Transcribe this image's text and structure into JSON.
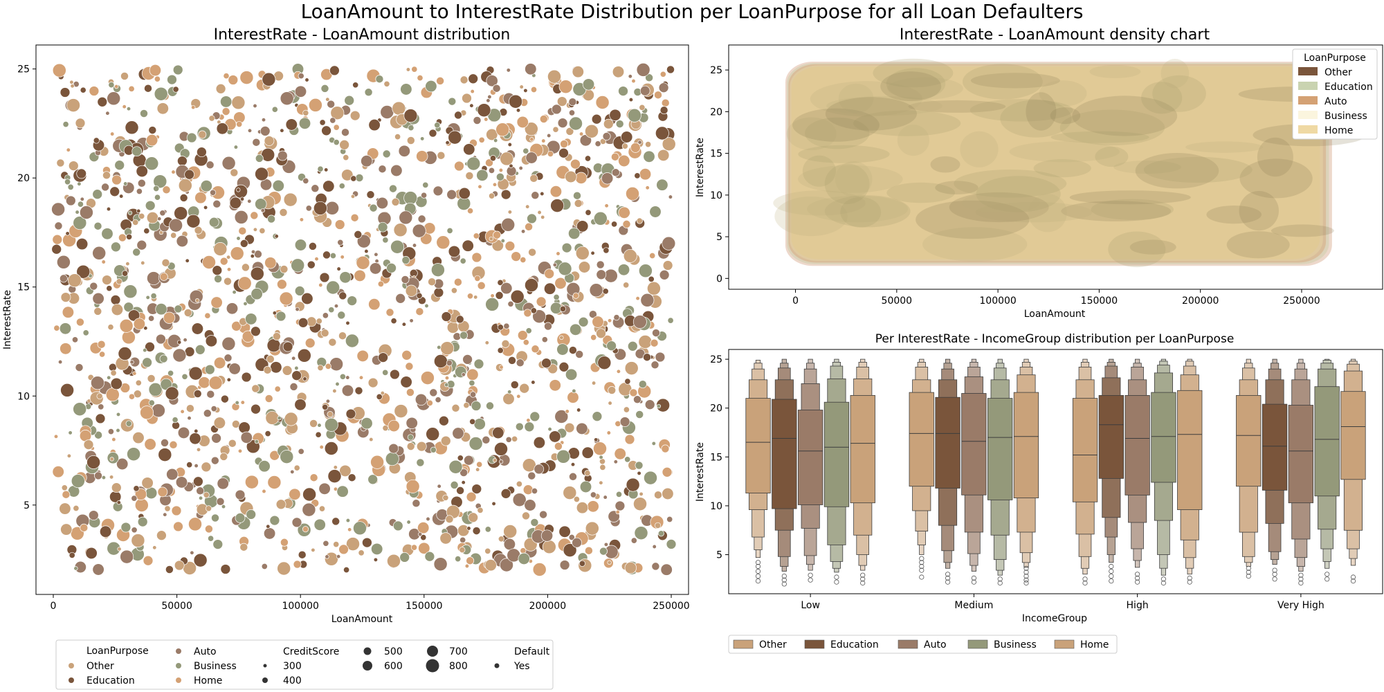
{
  "figure": {
    "suptitle": "LoanAmount to InterestRate Distribution per LoanPurpose for all Loan Defaulters"
  },
  "chart_data": [
    {
      "type": "scatter",
      "title": "InterestRate - LoanAmount distribution",
      "xlabel": "LoanAmount",
      "ylabel": "InterestRate",
      "xlim": [
        -7000,
        257000
      ],
      "ylim": [
        0.9,
        26.1
      ],
      "xticks": [
        0,
        50000,
        100000,
        150000,
        200000,
        250000
      ],
      "xtick_labels": [
        "0",
        "50000",
        "100000",
        "150000",
        "200000",
        "250000"
      ],
      "yticks": [
        5,
        10,
        15,
        20,
        25
      ],
      "ytick_labels": [
        "5",
        "10",
        "15",
        "20",
        "25"
      ],
      "x_range": [
        1000,
        250000
      ],
      "y_range": [
        2,
        25
      ],
      "approx_point_count": 1800,
      "note_points": "individual points are too dense to read; distribution is roughly uniform over the ranges",
      "categories": [
        "Other",
        "Education",
        "Auto",
        "Business",
        "Home"
      ],
      "colors": {
        "Other": "#c9a27a",
        "Education": "#7a553b",
        "Auto": "#9a7b68",
        "Business": "#94997a",
        "Home": "#d4a174"
      },
      "size_variable": "CreditScore",
      "size_levels": [
        300,
        400,
        500,
        600,
        700,
        800
      ],
      "style_variable": "Default",
      "style_levels": [
        "Yes"
      ],
      "legend": {
        "placement": "bottom",
        "hue_title": "LoanPurpose",
        "hue_items": [
          "Other",
          "Education",
          "Auto",
          "Business",
          "Home"
        ],
        "size_title": "CreditScore",
        "size_items": [
          "300",
          "400",
          "500",
          "600",
          "700",
          "800"
        ],
        "style_title": "Default",
        "style_items": [
          "Yes"
        ]
      }
    },
    {
      "type": "area",
      "subtype": "kde-density",
      "title": "InterestRate - LoanAmount density chart",
      "xlabel": "LoanAmount",
      "ylabel": "InterestRate",
      "xlim": [
        -33000,
        290000
      ],
      "ylim": [
        -1.3,
        28
      ],
      "xticks": [
        0,
        50000,
        100000,
        150000,
        200000,
        250000
      ],
      "xtick_labels": [
        "0",
        "50000",
        "100000",
        "150000",
        "200000",
        "250000"
      ],
      "yticks": [
        0,
        5,
        10,
        15,
        20,
        25
      ],
      "ytick_labels": [
        "0",
        "5",
        "10",
        "15",
        "20",
        "25"
      ],
      "density_extent": {
        "x": [
          -5000,
          265000
        ],
        "y": [
          1.5,
          26
        ]
      },
      "series": [
        {
          "name": "Other",
          "color": "#7a553b"
        },
        {
          "name": "Education",
          "color": "#c9d3b0"
        },
        {
          "name": "Auto",
          "color": "#d4a174"
        },
        {
          "name": "Business",
          "color": "#fbf5de"
        },
        {
          "name": "Home",
          "color": "#efd9a4"
        }
      ],
      "legend": {
        "title": "LoanPurpose",
        "placement": "top-right",
        "items": [
          "Other",
          "Education",
          "Auto",
          "Business",
          "Home"
        ]
      }
    },
    {
      "type": "boxen",
      "title": "Per InterestRate - IncomeGroup distribution per LoanPurpose",
      "xlabel": "IncomeGroup",
      "ylabel": "InterestRate",
      "ylim": [
        1.0,
        26.0
      ],
      "yticks": [
        5,
        10,
        15,
        20,
        25
      ],
      "ytick_labels": [
        "5",
        "10",
        "15",
        "20",
        "25"
      ],
      "categories": [
        "Low",
        "Medium",
        "High",
        "Very High"
      ],
      "hue_order": [
        "Other",
        "Education",
        "Auto",
        "Business",
        "Home"
      ],
      "colors": {
        "Other": "#c9a27a",
        "Education": "#7a553b",
        "Auto": "#9a7b68",
        "Business": "#94997a",
        "Home": "#c9a27a"
      },
      "series": [
        {
          "name": "Other",
          "median": [
            16.5,
            17.4,
            15.2,
            17.2
          ]
        },
        {
          "name": "Education",
          "median": [
            16.9,
            17.4,
            18.3,
            16.1
          ]
        },
        {
          "name": "Auto",
          "median": [
            15.6,
            16.6,
            16.9,
            15.6
          ]
        },
        {
          "name": "Business",
          "median": [
            16.0,
            17.0,
            17.1,
            16.8
          ]
        },
        {
          "name": "Home",
          "median": [
            16.4,
            17.1,
            17.3,
            18.1
          ]
        }
      ],
      "boxes": {
        "Low": {
          "Other": {
            "median": 16.5,
            "q": [
              11.3,
              21.0
            ],
            "l2": [
              9.6,
              22.9
            ],
            "l3": [
              6.8,
              24.0
            ],
            "l4": [
              5.5,
              24.6
            ],
            "l5": [
              4.7,
              24.9
            ],
            "outliers": [
              4.2,
              3.8,
              3.3,
              2.8,
              2.3
            ]
          },
          "Education": {
            "median": 16.9,
            "q": [
              9.7,
              20.9
            ],
            "l2": [
              7.5,
              22.9
            ],
            "l3": [
              4.8,
              24.1
            ],
            "l4": [
              3.8,
              24.6
            ],
            "l5": [
              3.3,
              25.0
            ],
            "outliers": [
              2.8,
              2.4,
              2.0
            ]
          },
          "Auto": {
            "median": 15.6,
            "q": [
              10.1,
              19.8
            ],
            "l2": [
              7.7,
              22.5
            ],
            "l3": [
              4.9,
              24.0
            ],
            "l4": [
              4.0,
              24.6
            ],
            "l5": [
              3.4,
              25.0
            ],
            "outliers": [
              2.9,
              2.4
            ]
          },
          "Business": {
            "median": 16.0,
            "q": [
              9.9,
              20.6
            ],
            "l2": [
              6.0,
              23.0
            ],
            "l3": [
              4.3,
              24.3
            ],
            "l4": [
              3.6,
              24.7
            ],
            "l5": [
              3.2,
              25.0
            ],
            "outliers": [
              2.7,
              2.2
            ]
          },
          "Home": {
            "median": 16.4,
            "q": [
              10.3,
              21.3
            ],
            "l2": [
              7.0,
              23.0
            ],
            "l3": [
              5.0,
              24.2
            ],
            "l4": [
              3.9,
              24.7
            ],
            "l5": [
              3.4,
              25.0
            ],
            "outliers": [
              2.9,
              2.5,
              2.1
            ]
          }
        },
        "Medium": {
          "Other": {
            "median": 17.4,
            "q": [
              12.0,
              21.6
            ],
            "l2": [
              9.5,
              22.9
            ],
            "l3": [
              7.4,
              24.2
            ],
            "l4": [
              6.0,
              24.7
            ],
            "l5": [
              5.0,
              25.0
            ],
            "outliers": [
              4.6,
              4.2,
              3.8,
              3.4,
              2.7
            ]
          },
          "Education": {
            "median": 17.4,
            "q": [
              11.8,
              21.1
            ],
            "l2": [
              8.0,
              22.9
            ],
            "l3": [
              5.4,
              24.0
            ],
            "l4": [
              4.2,
              24.6
            ],
            "l5": [
              3.6,
              25.0
            ],
            "outliers": [
              3.0,
              2.6,
              2.2
            ]
          },
          "Auto": {
            "median": 16.6,
            "q": [
              11.1,
              21.5
            ],
            "l2": [
              7.3,
              23.2
            ],
            "l3": [
              5.1,
              24.2
            ],
            "l4": [
              3.9,
              24.7
            ],
            "l5": [
              3.3,
              25.0
            ],
            "outliers": [
              2.6,
              2.2
            ]
          },
          "Business": {
            "median": 17.0,
            "q": [
              10.6,
              21.0
            ],
            "l2": [
              7.0,
              22.9
            ],
            "l3": [
              4.5,
              24.1
            ],
            "l4": [
              3.4,
              24.6
            ],
            "l5": [
              2.9,
              25.0
            ],
            "outliers": [
              2.5,
              2.1
            ]
          },
          "Home": {
            "median": 17.1,
            "q": [
              10.8,
              21.6
            ],
            "l2": [
              7.3,
              23.4
            ],
            "l3": [
              5.2,
              24.2
            ],
            "l4": [
              4.2,
              24.7
            ],
            "l5": [
              3.7,
              25.0
            ],
            "outliers": [
              3.6,
              3.2,
              2.8,
              2.4,
              2.1
            ]
          }
        },
        "High": {
          "Other": {
            "median": 15.2,
            "q": [
              10.4,
              21.0
            ],
            "l2": [
              7.1,
              22.9
            ],
            "l3": [
              4.8,
              24.2
            ],
            "l4": [
              3.6,
              24.7
            ],
            "l5": [
              3.0,
              25.0
            ],
            "outliers": [
              2.5,
              2.1
            ]
          },
          "Education": {
            "median": 18.3,
            "q": [
              12.8,
              21.3
            ],
            "l2": [
              8.8,
              23.1
            ],
            "l3": [
              6.8,
              24.3
            ],
            "l4": [
              5.0,
              24.7
            ],
            "l5": [
              4.2,
              25.0
            ],
            "outliers": [
              3.8,
              3.3,
              2.8,
              2.3
            ]
          },
          "Auto": {
            "median": 16.9,
            "q": [
              11.1,
              21.3
            ],
            "l2": [
              8.3,
              22.9
            ],
            "l3": [
              5.6,
              24.2
            ],
            "l4": [
              4.4,
              24.6
            ],
            "l5": [
              3.7,
              25.0
            ],
            "outliers": [
              3.0,
              2.6,
              2.2
            ]
          },
          "Business": {
            "median": 17.1,
            "q": [
              12.4,
              21.6
            ],
            "l2": [
              8.5,
              23.6
            ],
            "l3": [
              5.0,
              24.4
            ],
            "l4": [
              3.6,
              24.8
            ],
            "l5": [
              2.9,
              25.0
            ],
            "outliers": [
              2.5,
              2.1
            ]
          },
          "Home": {
            "median": 17.3,
            "q": [
              9.6,
              21.8
            ],
            "l2": [
              6.5,
              23.4
            ],
            "l3": [
              4.7,
              24.3
            ],
            "l4": [
              3.6,
              24.8
            ],
            "l5": [
              3.0,
              25.0
            ],
            "outliers": [
              2.6,
              2.2
            ]
          }
        },
        "Very High": {
          "Other": {
            "median": 17.2,
            "q": [
              12.0,
              21.3
            ],
            "l2": [
              7.3,
              22.9
            ],
            "l3": [
              4.8,
              24.1
            ],
            "l4": [
              4.2,
              24.6
            ],
            "l5": [
              3.8,
              25.0
            ],
            "outliers": [
              3.6,
              3.2,
              2.8
            ]
          },
          "Education": {
            "median": 16.1,
            "q": [
              11.6,
              20.4
            ],
            "l2": [
              8.2,
              22.9
            ],
            "l3": [
              5.3,
              24.0
            ],
            "l4": [
              4.5,
              24.6
            ],
            "l5": [
              4.0,
              25.0
            ],
            "outliers": [
              3.4,
              3.0,
              2.5
            ]
          },
          "Auto": {
            "median": 15.6,
            "q": [
              10.3,
              20.3
            ],
            "l2": [
              6.6,
              22.9
            ],
            "l3": [
              4.7,
              24.0
            ],
            "l4": [
              3.8,
              24.6
            ],
            "l5": [
              3.3,
              25.0
            ],
            "outliers": [
              2.9,
              2.5,
              2.1
            ]
          },
          "Business": {
            "median": 16.8,
            "q": [
              11.0,
              22.2
            ],
            "l2": [
              7.6,
              24.0
            ],
            "l3": [
              5.6,
              24.6
            ],
            "l4": [
              4.3,
              24.9
            ],
            "l5": [
              3.6,
              25.0
            ],
            "outliers": [
              3.0,
              2.5
            ]
          },
          "Home": {
            "median": 18.1,
            "q": [
              12.7,
              21.7
            ],
            "l2": [
              7.5,
              23.8
            ],
            "l3": [
              5.6,
              24.5
            ],
            "l4": [
              4.6,
              24.8
            ],
            "l5": [
              3.9,
              25.0
            ],
            "outliers": [
              2.7,
              2.3
            ]
          }
        }
      },
      "legend": {
        "placement": "bottom",
        "items": [
          "Other",
          "Education",
          "Auto",
          "Business",
          "Home"
        ]
      }
    }
  ]
}
